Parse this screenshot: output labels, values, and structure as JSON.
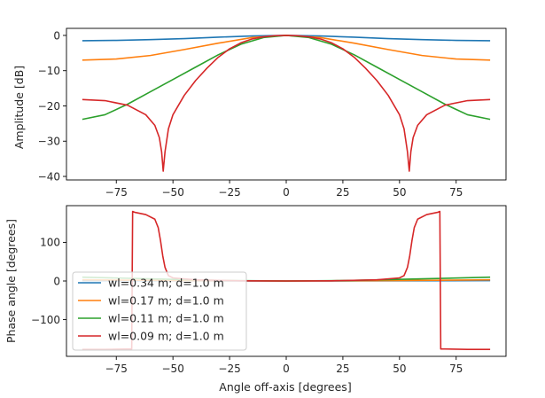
{
  "chart_data": [
    {
      "type": "line",
      "title": "",
      "xlabel": "",
      "ylabel": "Amplitude [dB]",
      "xlim": [
        -97,
        97
      ],
      "ylim": [
        -41,
        2
      ],
      "xticks": [
        -75,
        -50,
        -25,
        0,
        25,
        50,
        75
      ],
      "xtick_labels": [
        "−75",
        "−50",
        "−25",
        "0",
        "25",
        "50",
        "75"
      ],
      "yticks": [
        0,
        -10,
        -20,
        -30,
        -40
      ],
      "ytick_labels": [
        "0",
        "−10",
        "−20",
        "−30",
        "−40"
      ],
      "grid": false,
      "series": [
        {
          "name": "wl=0.34 m; d=1.0 m",
          "color": "#1f77b4",
          "x": [
            -90,
            -75,
            -60,
            -45,
            -30,
            -15,
            0,
            15,
            30,
            45,
            60,
            75,
            90
          ],
          "y": [
            -1.5,
            -1.4,
            -1.2,
            -0.9,
            -0.5,
            -0.15,
            0,
            -0.15,
            -0.5,
            -0.9,
            -1.2,
            -1.4,
            -1.5
          ]
        },
        {
          "name": "wl=0.17 m; d=1.0 m",
          "color": "#ff7f0e",
          "x": [
            -90,
            -75,
            -60,
            -45,
            -30,
            -15,
            0,
            15,
            30,
            45,
            60,
            75,
            90
          ],
          "y": [
            -7.0,
            -6.7,
            -5.7,
            -4.0,
            -2.2,
            -0.6,
            0,
            -0.6,
            -2.2,
            -4.0,
            -5.7,
            -6.7,
            -7.0
          ]
        },
        {
          "name": "wl=0.11 m; d=1.0 m",
          "color": "#2ca02c",
          "x": [
            -90,
            -80,
            -70,
            -60,
            -50,
            -40,
            -30,
            -20,
            -10,
            0,
            10,
            20,
            30,
            40,
            50,
            60,
            70,
            80,
            90
          ],
          "y": [
            -23.8,
            -22.5,
            -19.5,
            -16.0,
            -12.5,
            -9.0,
            -5.5,
            -2.5,
            -0.6,
            0,
            -0.6,
            -2.5,
            -5.5,
            -9.0,
            -12.5,
            -16.0,
            -19.5,
            -22.5,
            -23.8
          ]
        },
        {
          "name": "wl=0.09 m; d=1.0 m",
          "color": "#d62728",
          "x": [
            -90,
            -80,
            -70,
            -62,
            -58,
            -56,
            -55,
            -54.3,
            -53.5,
            -52,
            -50,
            -45,
            -40,
            -35,
            -30,
            -25,
            -20,
            -15,
            -10,
            -5,
            0,
            5,
            10,
            15,
            20,
            25,
            30,
            35,
            40,
            45,
            50,
            52,
            53.5,
            54.3,
            55,
            56,
            58,
            62,
            70,
            80,
            90
          ],
          "y": [
            -18.2,
            -18.5,
            -19.8,
            -22.5,
            -25.5,
            -29.0,
            -33.0,
            -38.5,
            -33.0,
            -26.5,
            -22.5,
            -17.0,
            -12.8,
            -9.3,
            -6.2,
            -3.8,
            -2.1,
            -1.0,
            -0.4,
            -0.1,
            0,
            -0.1,
            -0.4,
            -1.0,
            -2.1,
            -3.8,
            -6.2,
            -9.3,
            -12.8,
            -17.0,
            -22.5,
            -26.5,
            -33.0,
            -38.5,
            -33.0,
            -29.0,
            -25.5,
            -22.5,
            -19.8,
            -18.5,
            -18.2
          ]
        }
      ]
    },
    {
      "type": "line",
      "title": "",
      "xlabel": "Angle off-axis [degrees]",
      "ylabel": "Phase angle [degrees]",
      "xlim": [
        -97,
        97
      ],
      "ylim": [
        -195,
        195
      ],
      "xticks": [
        -75,
        -50,
        -25,
        0,
        25,
        50,
        75
      ],
      "xtick_labels": [
        "−75",
        "−50",
        "−25",
        "0",
        "25",
        "50",
        "75"
      ],
      "yticks": [
        100,
        0,
        -100
      ],
      "ytick_labels": [
        "100",
        "0",
        "−100"
      ],
      "grid": false,
      "legend": "lower-left",
      "series": [
        {
          "name": "wl=0.34 m; d=1.0 m",
          "color": "#1f77b4",
          "x": [
            -90,
            -45,
            0,
            45,
            90
          ],
          "y": [
            1.0,
            0.3,
            0,
            0.3,
            1.0
          ]
        },
        {
          "name": "wl=0.17 m; d=1.0 m",
          "color": "#ff7f0e",
          "x": [
            -90,
            -45,
            0,
            45,
            90
          ],
          "y": [
            3.0,
            1.0,
            0,
            1.0,
            3.0
          ]
        },
        {
          "name": "wl=0.11 m; d=1.0 m",
          "color": "#2ca02c",
          "x": [
            -90,
            -60,
            -30,
            0,
            30,
            60,
            90
          ],
          "y": [
            10.0,
            5.5,
            1.5,
            0,
            1.5,
            5.5,
            10.0
          ]
        },
        {
          "name": "wl=0.09 m; d=1.0 m",
          "color": "#d62728",
          "x": [
            -90,
            -80,
            -70,
            -68.2,
            -67.8,
            -67,
            -62,
            -58,
            -56.5,
            -55.5,
            -54.5,
            -53.5,
            -52,
            -50,
            -40,
            -20,
            0,
            20,
            40,
            50,
            52,
            53.5,
            54.5,
            55.5,
            56.5,
            58,
            62,
            67,
            67.8,
            68.2,
            70,
            80,
            90
          ],
          "y": [
            -177,
            -177,
            -176,
            -176,
            180,
            178,
            172,
            160,
            138,
            105,
            65,
            35,
            14,
            8,
            3,
            0.5,
            0,
            0.5,
            3,
            8,
            14,
            35,
            65,
            105,
            138,
            160,
            172,
            178,
            180,
            -176,
            -176,
            -177,
            -177
          ]
        }
      ]
    }
  ]
}
